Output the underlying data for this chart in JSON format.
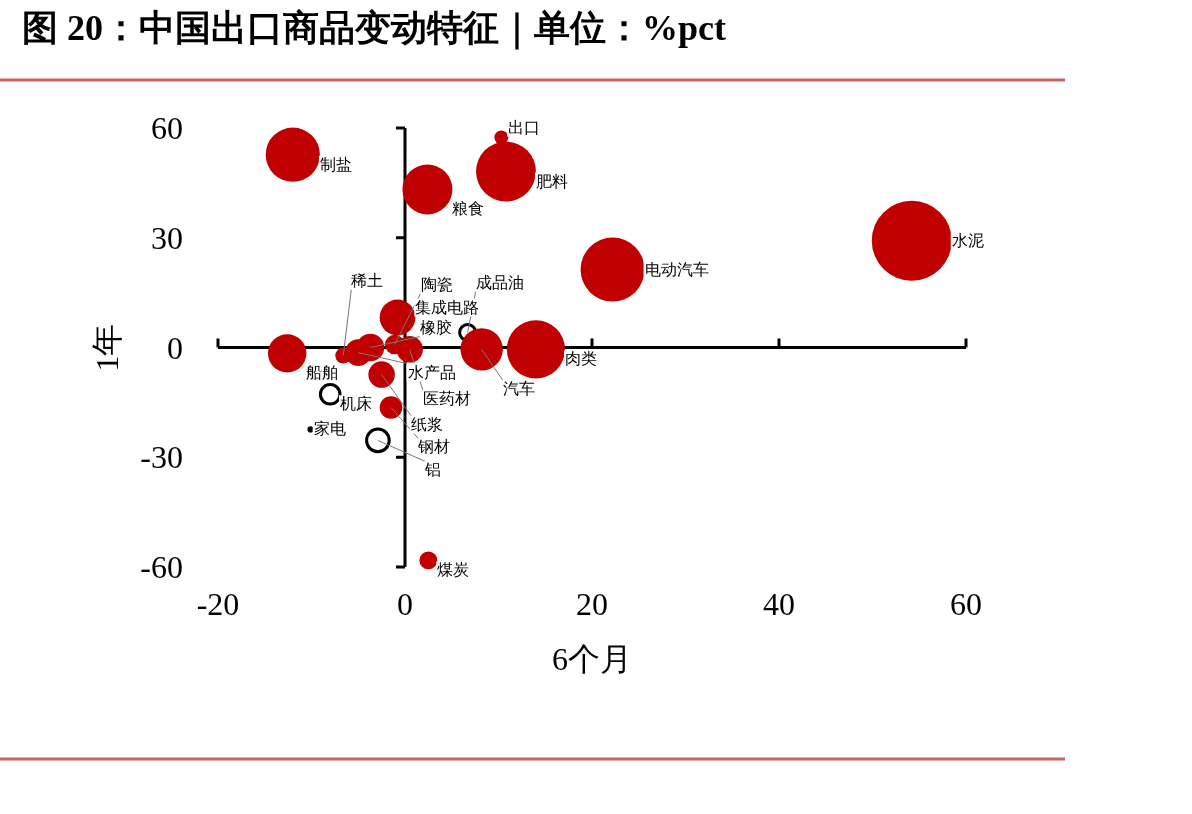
{
  "chart_data": {
    "type": "bubble",
    "title": "图 20：中国出口商品变动特征｜单位：%pct",
    "xlabel": "6个月",
    "ylabel": "1年",
    "xlim": [
      -20,
      60
    ],
    "ylim": [
      -60,
      60
    ],
    "xticks": [
      -20,
      0,
      20,
      40,
      60
    ],
    "yticks": [
      -60,
      -30,
      0,
      30,
      60
    ],
    "legend": false,
    "series": [
      {
        "x": [
          -12.0,
          2.4,
          10.8,
          10.3,
          54.2,
          22.2,
          -0.8,
          6.7,
          14.0,
          8.2,
          -12.6,
          -6.6,
          -5.0,
          -3.7,
          0.5,
          -1.1,
          -2.5,
          -8.0,
          -1.5,
          -10.1,
          -2.9,
          2.5
        ],
        "values": [
          52.7,
          43.2,
          48.1,
          57.4,
          29.2,
          21.3,
          8.2,
          4.1,
          -0.5,
          -0.5,
          -1.6,
          -2.2,
          -1.4,
          0,
          -0.5,
          0.8,
          -7.4,
          -12.8,
          -16.4,
          -22.4,
          -25.4,
          -58.2
        ],
        "colors": [
          "#c00000",
          "#c00000",
          "#c00000",
          "#c00000",
          "#c00000",
          "#c00000",
          "#c00000",
          "#ffffff",
          "#c00000",
          "#c00000",
          "#c00000",
          "#c00000",
          "#c00000",
          "#c00000",
          "#c00000",
          "#c00000",
          "#c00000",
          "#ffffff",
          "#c00000",
          "#000000",
          "#ffffff",
          "#c00000"
        ],
        "sizes": [
          0.46,
          0.39,
          0.56,
          0.03,
          1,
          0.64,
          0.2,
          0.04,
          0.53,
          0.28,
          0.23,
          0.04,
          0.11,
          0.12,
          0.11,
          0.06,
          0.11,
          0.06,
          0.08,
          0.006,
          0.08,
          0.05
        ]
      }
    ],
    "annotations": [
      {
        "text": "制盐",
        "x": -12.0,
        "y": 52.7
      },
      {
        "text": "粮食",
        "x": 2.4,
        "y": 43.2
      },
      {
        "text": "肥料",
        "x": 10.8,
        "y": 48.1
      },
      {
        "text": "出口",
        "x": 10.3,
        "y": 57.4
      },
      {
        "text": "水泥",
        "x": 54.2,
        "y": 29.2
      },
      {
        "text": "电动汽车",
        "x": 22.2,
        "y": 21.3
      },
      {
        "text": "集成电路",
        "x": -0.8,
        "y": 8.2
      },
      {
        "text": "成品油",
        "x": 6.7,
        "y": 4.1
      },
      {
        "text": "肉类",
        "x": 14.0,
        "y": -0.5
      },
      {
        "text": "汽车",
        "x": 8.2,
        "y": -0.5
      },
      {
        "text": "船舶",
        "x": -12.6,
        "y": -1.6
      },
      {
        "text": "稀土",
        "x": -6.6,
        "y": -2.2
      },
      {
        "text": "水产品",
        "x": -5.0,
        "y": -1.4
      },
      {
        "text": "橡胶",
        "x": -3.7,
        "y": 0
      },
      {
        "text": "医药材",
        "x": 0.5,
        "y": -0.5
      },
      {
        "text": "陶瓷",
        "x": -1.1,
        "y": 0.8
      },
      {
        "text": "纸浆",
        "x": -2.5,
        "y": -7.4
      },
      {
        "text": "机床",
        "x": -8.0,
        "y": -12.8
      },
      {
        "text": "钢材",
        "x": -1.5,
        "y": -16.4
      },
      {
        "text": "家电",
        "x": -10.1,
        "y": -22.4
      },
      {
        "text": "铝",
        "x": -2.9,
        "y": -25.4
      },
      {
        "text": "煤炭",
        "x": 2.5,
        "y": -58.2
      }
    ]
  }
}
